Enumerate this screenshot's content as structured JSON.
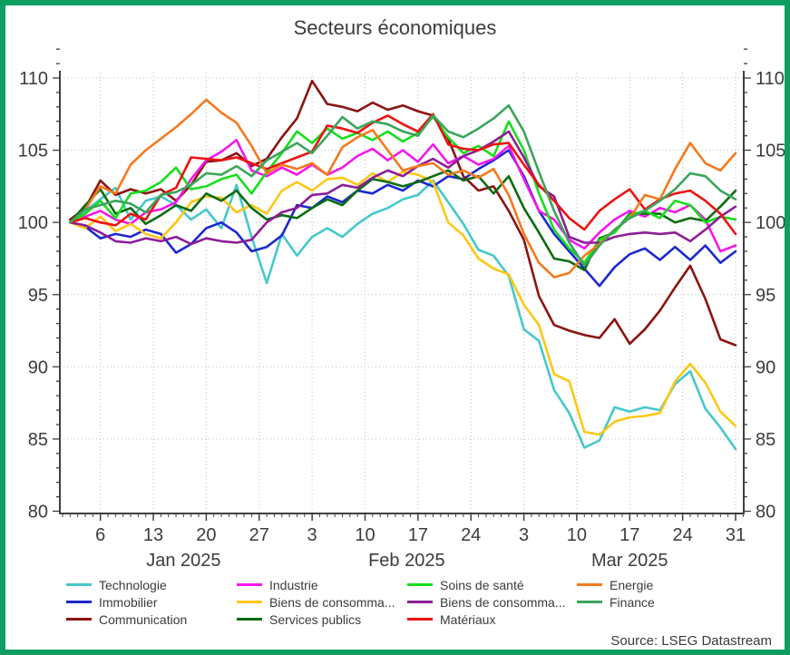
{
  "title": "Secteurs économiques",
  "source": "Source: LSEG Datastream",
  "colors": {
    "frame_border": "#0d9e60",
    "axis": "#3f3f3f",
    "grid": "#bdbdbd",
    "text": "#3c3c3c"
  },
  "chart_data": {
    "type": "line",
    "title": "Secteurs économiques",
    "xlabel": "",
    "ylabel": "",
    "ylim": [
      80,
      110
    ],
    "ytick_step": 5,
    "yticks": [
      80,
      85,
      90,
      95,
      100,
      105,
      110
    ],
    "grid": "dotted",
    "legend_position": "bottom",
    "x_unit": "days since 2025-01-01",
    "x_range_days": [
      0,
      89
    ],
    "x_ticks": [
      {
        "day": 5,
        "label": "6"
      },
      {
        "day": 12,
        "label": "13"
      },
      {
        "day": 19,
        "label": "20"
      },
      {
        "day": 26,
        "label": "27"
      },
      {
        "day": 33,
        "label": "3"
      },
      {
        "day": 40,
        "label": "10"
      },
      {
        "day": 47,
        "label": "17"
      },
      {
        "day": 54,
        "label": "24"
      },
      {
        "day": 61,
        "label": "3"
      },
      {
        "day": 68,
        "label": "10"
      },
      {
        "day": 75,
        "label": "17"
      },
      {
        "day": 82,
        "label": "24"
      },
      {
        "day": 89,
        "label": "31"
      }
    ],
    "months": [
      {
        "label": "Jan 2025",
        "day": 16
      },
      {
        "label": "Feb 2025",
        "day": 45.5
      },
      {
        "label": "Mar 2025",
        "day": 75
      }
    ],
    "x_days": [
      1,
      3,
      5,
      7,
      9,
      11,
      13,
      15,
      17,
      19,
      21,
      23,
      25,
      27,
      29,
      31,
      33,
      35,
      37,
      39,
      41,
      43,
      45,
      47,
      49,
      51,
      53,
      55,
      57,
      59,
      61,
      63,
      65,
      67,
      69,
      71,
      73,
      75,
      77,
      79,
      81,
      83,
      85,
      87,
      89
    ],
    "series": [
      {
        "name": "Technologie",
        "color": "#45c8cc",
        "values": [
          100,
          100.8,
          101.6,
          102.4,
          100.2,
          101.5,
          101.8,
          101.2,
          100.2,
          100.9,
          99.6,
          102.6,
          99.0,
          95.8,
          99.2,
          97.7,
          99.0,
          99.6,
          99.0,
          99.9,
          100.6,
          101.0,
          101.6,
          101.9,
          102.9,
          101.4,
          99.9,
          98.1,
          97.7,
          96.3,
          92.6,
          91.8,
          88.4,
          86.8,
          84.4,
          84.9,
          87.2,
          86.9,
          87.2,
          87.0,
          88.8,
          89.7,
          87.1,
          85.8,
          84.3
        ]
      },
      {
        "name": "Immobilier",
        "color": "#1c28cf",
        "values": [
          100,
          99.7,
          98.9,
          99.2,
          99.0,
          99.5,
          99.2,
          97.9,
          98.5,
          99.6,
          100.0,
          99.3,
          98.0,
          98.3,
          99.1,
          101.2,
          101.0,
          101.8,
          101.4,
          102.2,
          102.0,
          102.6,
          102.2,
          102.9,
          102.5,
          103.2,
          103.0,
          103.7,
          104.3,
          105.0,
          103.2,
          100.8,
          99.2,
          98.0,
          96.8,
          95.6,
          96.9,
          97.8,
          98.2,
          97.4,
          98.3,
          97.4,
          98.4,
          97.2,
          98.0
        ]
      },
      {
        "name": "Communication",
        "color": "#8b1412",
        "values": [
          100.2,
          101.0,
          102.9,
          101.9,
          102.3,
          102.0,
          102.3,
          101.5,
          102.6,
          104.2,
          104.3,
          104.8,
          103.9,
          104.4,
          105.9,
          107.2,
          109.8,
          108.2,
          108.0,
          107.7,
          108.3,
          107.8,
          108.1,
          107.7,
          107.4,
          105.8,
          103.2,
          102.2,
          102.5,
          100.8,
          98.8,
          94.9,
          92.9,
          92.5,
          92.2,
          92.0,
          93.3,
          91.6,
          92.6,
          93.9,
          95.5,
          97.0,
          94.7,
          91.9,
          91.5
        ]
      },
      {
        "name": "Industrie",
        "color": "#f516eb",
        "values": [
          100,
          100.4,
          100.8,
          100.2,
          99.9,
          100.7,
          100.9,
          101.4,
          103.0,
          104.3,
          104.9,
          105.7,
          103.6,
          103.2,
          103.8,
          103.3,
          104.0,
          103.3,
          103.8,
          104.6,
          105.1,
          104.3,
          105.0,
          104.2,
          105.4,
          104.1,
          104.6,
          104.0,
          104.4,
          105.3,
          103.0,
          100.8,
          100.2,
          98.8,
          98.2,
          99.3,
          100.2,
          100.8,
          100.4,
          101.0,
          100.7,
          101.2,
          100.2,
          98.0,
          98.4
        ]
      },
      {
        "name": "Biens de consomma...",
        "color": "#fdc716",
        "values": [
          100,
          99.6,
          100.4,
          99.4,
          99.9,
          99.2,
          98.9,
          100.0,
          101.4,
          101.8,
          101.7,
          100.7,
          101.2,
          100.6,
          102.2,
          102.8,
          102.2,
          103.0,
          103.1,
          102.6,
          103.4,
          102.8,
          103.5,
          103.3,
          102.8,
          100.0,
          99.1,
          97.5,
          96.8,
          96.4,
          94.3,
          92.9,
          89.5,
          89.0,
          85.5,
          85.3,
          86.2,
          86.5,
          86.6,
          86.8,
          89.0,
          90.2,
          88.9,
          86.9,
          85.9
        ]
      },
      {
        "name": "Services publics",
        "color": "#0b6b10",
        "values": [
          100,
          101.2,
          102.3,
          100.6,
          101.0,
          99.9,
          100.5,
          101.2,
          100.8,
          102.0,
          101.5,
          102.2,
          101.0,
          100.2,
          100.5,
          100.3,
          101.0,
          101.6,
          101.2,
          102.2,
          103.0,
          102.8,
          102.5,
          102.8,
          103.2,
          103.6,
          102.9,
          103.2,
          102.0,
          103.2,
          101.0,
          99.3,
          97.5,
          97.3,
          96.7,
          98.9,
          99.3,
          100.6,
          100.6,
          100.6,
          100.0,
          100.3,
          100.1,
          101.1,
          102.2
        ]
      },
      {
        "name": "Soins de santé",
        "color": "#16de1c",
        "values": [
          100,
          100.6,
          101.5,
          100.3,
          102.0,
          102.2,
          102.8,
          103.8,
          102.3,
          102.5,
          103.0,
          103.3,
          102.0,
          103.5,
          104.8,
          106.3,
          105.5,
          106.5,
          105.8,
          106.2,
          105.7,
          106.3,
          105.6,
          106.2,
          107.3,
          105.9,
          104.8,
          105.3,
          104.6,
          107.0,
          105.0,
          102.0,
          99.5,
          98.2,
          97.2,
          98.8,
          99.3,
          100.5,
          100.8,
          100.3,
          101.5,
          101.2,
          100.0,
          100.4,
          100.2
        ]
      },
      {
        "name": "Biens de consomma...",
        "color": "#8c1e96",
        "values": [
          100,
          99.8,
          99.3,
          98.7,
          98.6,
          98.9,
          98.7,
          99.0,
          98.5,
          98.9,
          98.7,
          98.6,
          98.8,
          100.0,
          100.7,
          101.0,
          101.9,
          102.0,
          102.6,
          102.4,
          103.1,
          103.6,
          103.2,
          103.9,
          104.4,
          103.8,
          104.6,
          105.0,
          105.6,
          106.3,
          104.5,
          102.5,
          101.8,
          99.0,
          98.6,
          98.6,
          99.0,
          99.2,
          99.3,
          99.2,
          99.3,
          98.7,
          99.5,
          100.4,
          101.1
        ]
      },
      {
        "name": "Matériaux",
        "color": "#ed1211",
        "values": [
          100,
          100.3,
          100.0,
          99.8,
          100.6,
          100.2,
          101.9,
          102.4,
          104.5,
          104.4,
          104.3,
          104.5,
          104.1,
          103.7,
          104.1,
          104.5,
          104.9,
          106.7,
          106.5,
          106.2,
          106.9,
          107.4,
          106.8,
          106.3,
          107.5,
          105.4,
          105.1,
          105.0,
          105.4,
          105.5,
          104.0,
          102.6,
          101.5,
          100.3,
          99.5,
          100.8,
          101.6,
          102.3,
          100.9,
          101.6,
          102.0,
          102.2,
          101.5,
          100.6,
          99.2
        ]
      },
      {
        "name": "Energie",
        "color": "#f5791d",
        "values": [
          100,
          100.9,
          102.5,
          102.0,
          104.0,
          105.0,
          105.8,
          106.6,
          107.5,
          108.5,
          107.6,
          106.9,
          105.3,
          103.4,
          104.0,
          103.7,
          104.1,
          103.3,
          105.2,
          105.9,
          106.4,
          105.0,
          103.6,
          103.9,
          104.1,
          103.3,
          103.6,
          103.1,
          103.7,
          101.9,
          99.2,
          97.2,
          96.2,
          96.5,
          97.7,
          98.5,
          99.5,
          100.3,
          101.9,
          101.6,
          103.7,
          105.5,
          104.1,
          103.6,
          104.8
        ]
      },
      {
        "name": "Finance",
        "color": "#3aa55c",
        "values": [
          100,
          100.9,
          101.2,
          101.5,
          101.3,
          100.7,
          101.9,
          102.1,
          102.6,
          103.4,
          103.3,
          103.9,
          103.2,
          104.3,
          104.9,
          105.5,
          104.8,
          106.0,
          107.3,
          106.5,
          107.0,
          106.8,
          106.3,
          106.0,
          107.4,
          106.3,
          105.9,
          106.5,
          107.2,
          108.1,
          106.3,
          103.5,
          100.8,
          98.6,
          97.0,
          98.4,
          99.5,
          100.3,
          100.8,
          101.5,
          102.3,
          103.4,
          103.2,
          102.2,
          101.6
        ]
      }
    ]
  },
  "legend": {
    "items_per_column": 3,
    "items": [
      {
        "label": "Technologie",
        "color": "#45c8cc"
      },
      {
        "label": "Immobilier",
        "color": "#1c28cf"
      },
      {
        "label": "Communication",
        "color": "#8b1412"
      },
      {
        "label": "Industrie",
        "color": "#f516eb"
      },
      {
        "label": "Biens de consomma...",
        "color": "#fdc716"
      },
      {
        "label": "Services publics",
        "color": "#0b6b10"
      },
      {
        "label": "Soins de santé",
        "color": "#16de1c"
      },
      {
        "label": "Biens de consomma...",
        "color": "#8c1e96"
      },
      {
        "label": "Matériaux",
        "color": "#ed1211"
      },
      {
        "label": "Energie",
        "color": "#f5791d"
      },
      {
        "label": "Finance",
        "color": "#3aa55c"
      }
    ]
  }
}
